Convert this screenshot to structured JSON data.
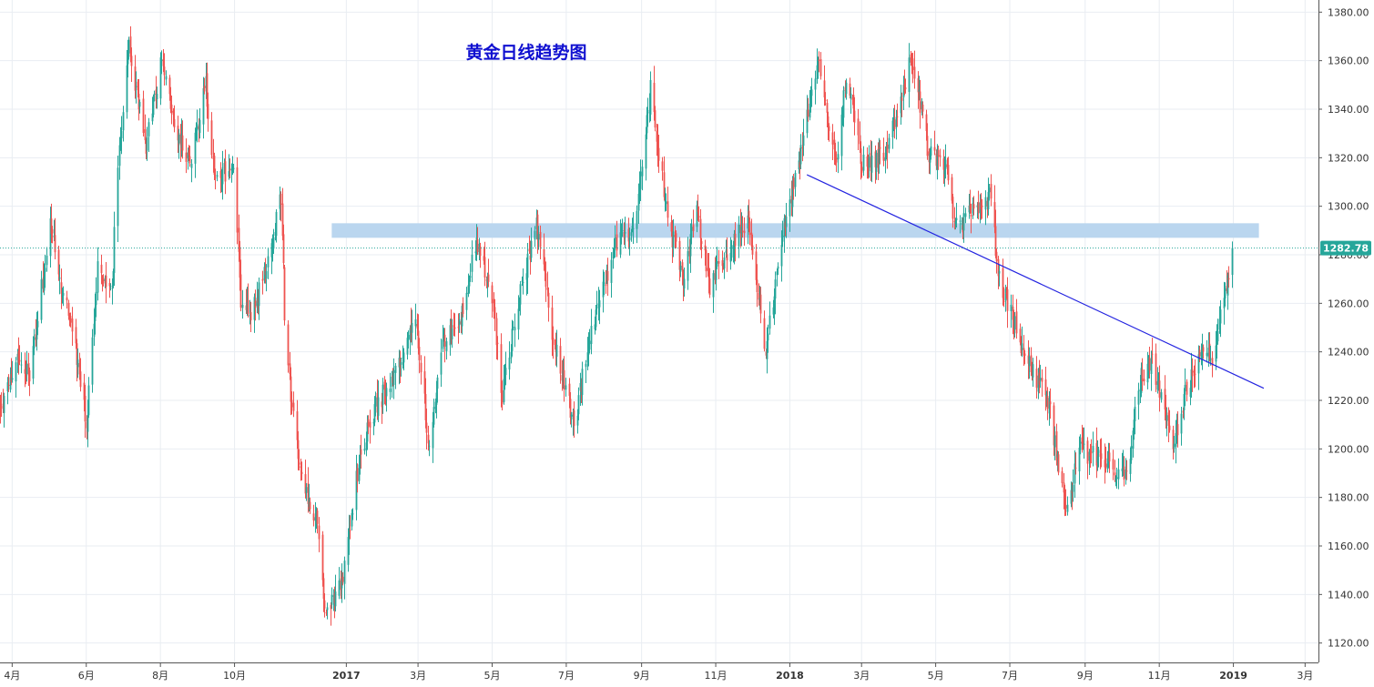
{
  "chart_data": {
    "type": "candlestick",
    "title": "黄金日线趋势图",
    "y_axis": {
      "position": "right",
      "range": [
        1112,
        1385
      ],
      "ticks": [
        "1120.00",
        "1140.00",
        "1160.00",
        "1180.00",
        "1200.00",
        "1220.00",
        "1240.00",
        "1260.00",
        "1280.00",
        "1300.00",
        "1320.00",
        "1340.00",
        "1360.00",
        "1380.00"
      ]
    },
    "x_axis": {
      "start": "2016-03-22",
      "end": "2019-03-12",
      "ticks": [
        {
          "label": "4月",
          "date": "2016-04-01",
          "bold": false
        },
        {
          "label": "6月",
          "date": "2016-06-01",
          "bold": false
        },
        {
          "label": "8月",
          "date": "2016-08-01",
          "bold": false
        },
        {
          "label": "10月",
          "date": "2016-10-01",
          "bold": false
        },
        {
          "label": "2017",
          "date": "2017-01-01",
          "bold": true
        },
        {
          "label": "3月",
          "date": "2017-03-01",
          "bold": false
        },
        {
          "label": "5月",
          "date": "2017-05-01",
          "bold": false
        },
        {
          "label": "7月",
          "date": "2017-07-01",
          "bold": false
        },
        {
          "label": "9月",
          "date": "2017-09-01",
          "bold": false
        },
        {
          "label": "11月",
          "date": "2017-11-01",
          "bold": false
        },
        {
          "label": "2018",
          "date": "2018-01-01",
          "bold": true
        },
        {
          "label": "3月",
          "date": "2018-03-01",
          "bold": false
        },
        {
          "label": "5月",
          "date": "2018-05-01",
          "bold": false
        },
        {
          "label": "7月",
          "date": "2018-07-01",
          "bold": false
        },
        {
          "label": "9月",
          "date": "2018-09-01",
          "bold": false
        },
        {
          "label": "11月",
          "date": "2018-11-01",
          "bold": false
        },
        {
          "label": "2019",
          "date": "2019-01-01",
          "bold": true
        },
        {
          "label": "3月",
          "date": "2019-03-01",
          "bold": false
        }
      ]
    },
    "price_path": [
      [
        "2016-03-22",
        1218
      ],
      [
        "2016-04-05",
        1235
      ],
      [
        "2016-04-15",
        1230
      ],
      [
        "2016-05-02",
        1292
      ],
      [
        "2016-05-12",
        1265
      ],
      [
        "2016-05-20",
        1252
      ],
      [
        "2016-06-01",
        1210
      ],
      [
        "2016-06-10",
        1275
      ],
      [
        "2016-06-22",
        1265
      ],
      [
        "2016-06-27",
        1320
      ],
      [
        "2016-07-06",
        1365
      ],
      [
        "2016-07-20",
        1325
      ],
      [
        "2016-08-02",
        1360
      ],
      [
        "2016-08-10",
        1338
      ],
      [
        "2016-08-25",
        1318
      ],
      [
        "2016-09-07",
        1350
      ],
      [
        "2016-09-15",
        1310
      ],
      [
        "2016-09-30",
        1318
      ],
      [
        "2016-10-06",
        1262
      ],
      [
        "2016-10-14",
        1255
      ],
      [
        "2016-10-28",
        1275
      ],
      [
        "2016-11-08",
        1305
      ],
      [
        "2016-11-12",
        1240
      ],
      [
        "2016-11-24",
        1190
      ],
      [
        "2016-12-07",
        1170
      ],
      [
        "2016-12-15",
        1130
      ],
      [
        "2016-12-28",
        1145
      ],
      [
        "2017-01-10",
        1190
      ],
      [
        "2017-01-20",
        1212
      ],
      [
        "2017-02-10",
        1232
      ],
      [
        "2017-02-27",
        1255
      ],
      [
        "2017-03-10",
        1200
      ],
      [
        "2017-03-20",
        1240
      ],
      [
        "2017-04-05",
        1255
      ],
      [
        "2017-04-17",
        1285
      ],
      [
        "2017-05-01",
        1262
      ],
      [
        "2017-05-09",
        1222
      ],
      [
        "2017-05-20",
        1255
      ],
      [
        "2017-06-06",
        1293
      ],
      [
        "2017-06-20",
        1245
      ],
      [
        "2017-07-07",
        1210
      ],
      [
        "2017-07-20",
        1245
      ],
      [
        "2017-08-10",
        1285
      ],
      [
        "2017-08-25",
        1290
      ],
      [
        "2017-09-08",
        1348
      ],
      [
        "2017-09-22",
        1295
      ],
      [
        "2017-10-05",
        1270
      ],
      [
        "2017-10-16",
        1300
      ],
      [
        "2017-10-27",
        1268
      ],
      [
        "2017-11-10",
        1282
      ],
      [
        "2017-11-27",
        1295
      ],
      [
        "2017-12-12",
        1242
      ],
      [
        "2017-12-28",
        1295
      ],
      [
        "2018-01-08",
        1318
      ],
      [
        "2018-01-25",
        1360
      ],
      [
        "2018-02-08",
        1315
      ],
      [
        "2018-02-16",
        1355
      ],
      [
        "2018-03-01",
        1318
      ],
      [
        "2018-03-20",
        1320
      ],
      [
        "2018-04-11",
        1362
      ],
      [
        "2018-04-25",
        1322
      ],
      [
        "2018-05-10",
        1318
      ],
      [
        "2018-05-16",
        1290
      ],
      [
        "2018-06-01",
        1298
      ],
      [
        "2018-06-14",
        1305
      ],
      [
        "2018-06-22",
        1270
      ],
      [
        "2018-07-12",
        1240
      ],
      [
        "2018-08-01",
        1220
      ],
      [
        "2018-08-16",
        1175
      ],
      [
        "2018-08-28",
        1200
      ],
      [
        "2018-09-15",
        1195
      ],
      [
        "2018-10-05",
        1188
      ],
      [
        "2018-10-15",
        1228
      ],
      [
        "2018-10-26",
        1235
      ],
      [
        "2018-11-13",
        1200
      ],
      [
        "2018-11-23",
        1225
      ],
      [
        "2018-12-05",
        1240
      ],
      [
        "2018-12-14",
        1238
      ],
      [
        "2018-12-31",
        1282
      ]
    ],
    "resistance_zone": {
      "from": "2016-12-20",
      "to": "2019-01-22",
      "low": 1287,
      "high": 1293,
      "color": "#bad6ef"
    },
    "trendline": {
      "start": [
        "2018-01-15",
        1313
      ],
      "end": [
        "2019-01-26",
        1225
      ],
      "color": "#2424e0"
    },
    "last_price": {
      "value": 1282.78,
      "label": "1282.78",
      "color": "#26a69a"
    },
    "colors": {
      "up": "#26a69a",
      "down": "#ef5350",
      "grid": "#e9edf2",
      "axis": "#555555",
      "title": "#1010d0"
    },
    "grid": true,
    "legend": "none"
  }
}
